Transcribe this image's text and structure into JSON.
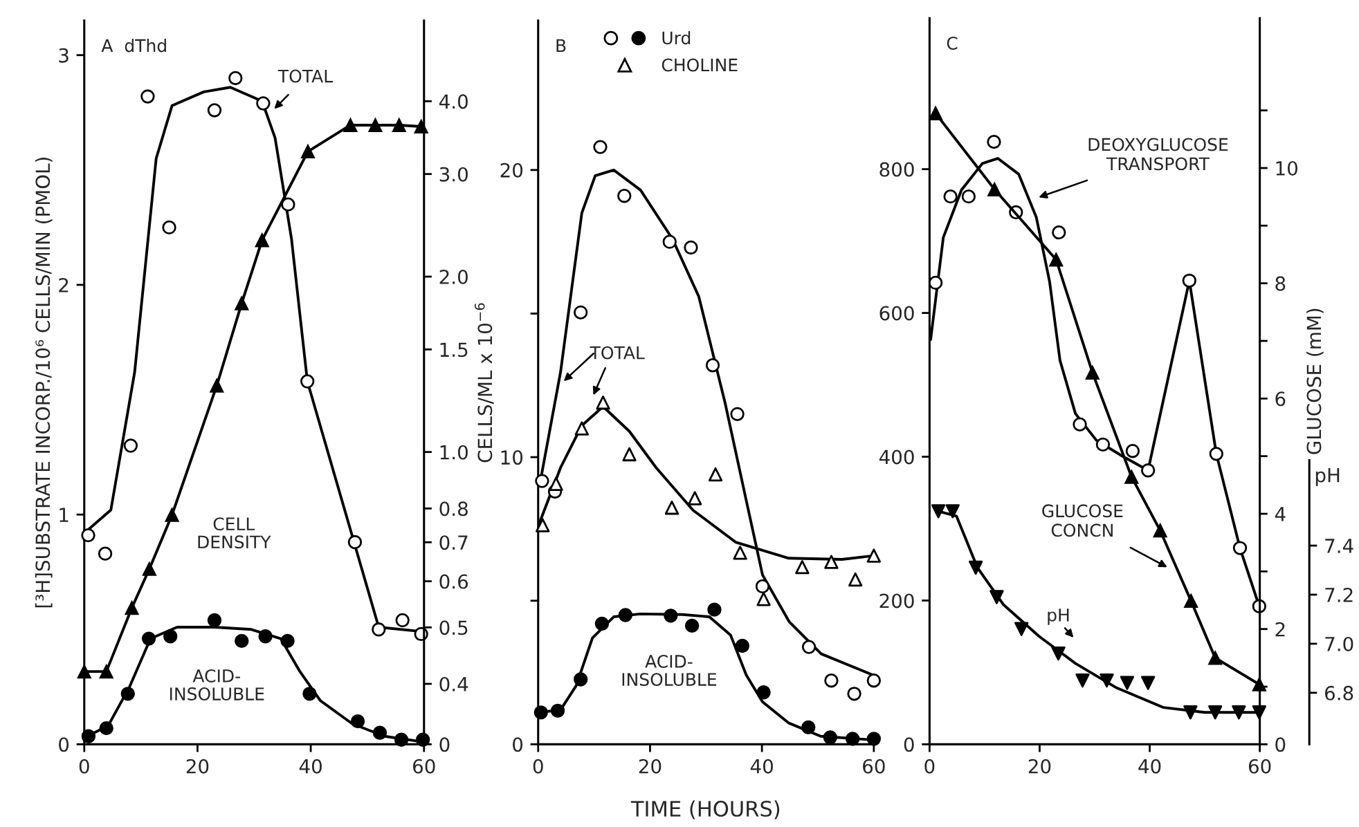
{
  "chart_data": [
    {
      "type": "line",
      "title": "A  dThd",
      "ylabel": "[³H]SUBSTRATE INCORP./10⁶ CELLS/MIN (PMOL)",
      "y2label": "CELLS/ML x 10$^{−6}$",
      "xlim": [
        0,
        60
      ],
      "xticks": [
        0,
        20,
        40,
        60
      ],
      "ylim": [
        0,
        3.15
      ],
      "yticks": [
        0,
        1,
        2,
        3
      ],
      "log": "y2",
      "y2lim": [
        0.315,
        5.5
      ],
      "y2ticks": [
        {
          "value": 0.315,
          "label": "0"
        },
        0.4,
        0.5,
        0.6,
        0.7,
        0.8,
        {
          "value": 1,
          "label": "1.0"
        },
        1.5,
        {
          "value": 2,
          "label": "2.0"
        },
        {
          "value": 3,
          "label": "3.0"
        },
        {
          "value": 4,
          "label": "4.0"
        }
      ],
      "series": [
        {
          "type": "scatter",
          "marker": "circle",
          "color": "#ffffff",
          "x": [
            0.7,
            3.7,
            8.2,
            11.2,
            15,
            23,
            26.7,
            31.6,
            36,
            39.4,
            47.8,
            52,
            56.2,
            59.5
          ],
          "values": [
            0.91,
            0.83,
            1.3,
            2.82,
            2.25,
            2.76,
            2.9,
            2.79,
            2.35,
            1.58,
            0.88,
            0.5,
            0.54,
            0.48
          ]
        },
        {
          "color": "#000000",
          "x": [
            0.5,
            4.7,
            8.9,
            12.7,
            15.5,
            21.1,
            25.8,
            31.4,
            33.7,
            36.6,
            39.4,
            52,
            60
          ],
          "values": [
            0.93,
            1.02,
            1.62,
            2.55,
            2.78,
            2.84,
            2.86,
            2.8,
            2.64,
            2.2,
            1.58,
            0.51,
            0.49
          ]
        },
        {
          "axis": "y2",
          "marker": "triangle",
          "color": "#000000",
          "x": [
            0,
            3.9,
            8.4,
            11.5,
            15.5,
            23.4,
            27.8,
            31.4,
            39.5,
            47,
            51.4,
            55.6,
            59.5
          ],
          "values": [
            0.42,
            0.42,
            0.54,
            0.63,
            0.78,
            1.3,
            1.8,
            2.31,
            3.28,
            3.64,
            3.64,
            3.64,
            3.62
          ]
        },
        {
          "type": "scatter",
          "marker": "circle",
          "color": "#000000",
          "x": [
            0.75,
            3.9,
            7.7,
            11.4,
            15.2,
            23,
            27.8,
            32,
            35.9,
            39.8,
            48.3,
            52.2,
            56,
            59.8
          ],
          "values": [
            0.035,
            0.07,
            0.22,
            0.46,
            0.47,
            0.54,
            0.45,
            0.47,
            0.45,
            0.22,
            0.1,
            0.05,
            0.02,
            0.02
          ]
        },
        {
          "color": "#000000",
          "x": [
            0.5,
            4.2,
            8,
            11.7,
            16.4,
            23,
            29.5,
            34.7,
            38,
            41.7,
            47.3,
            53,
            60
          ],
          "values": [
            0.035,
            0.08,
            0.25,
            0.46,
            0.51,
            0.51,
            0.5,
            0.46,
            0.32,
            0.19,
            0.09,
            0.035,
            0.01
          ]
        }
      ],
      "annotations": [
        {
          "text": "TOTAL",
          "x": 33.3,
          "y": 2.76
        },
        "CELL\nDENSITY",
        "ACID-\nINSOLUBLE"
      ]
    },
    {
      "type": "line",
      "title": "B",
      "xlabel": "TIME (HOURS)",
      "legend": "top left",
      "xlim": [
        0,
        60
      ],
      "xticks": [
        0,
        20,
        40,
        60
      ],
      "ylim": [
        0,
        25.2
      ],
      "yticks": [
        0,
        {
          "value": 5,
          "label": null
        },
        10,
        {
          "value": 15,
          "label": null
        },
        20
      ],
      "series": [
        {
          "type": "scatter",
          "marker": "circle",
          "color": "#ffffff",
          "x": [
            0.7,
            3,
            7.6,
            11.1,
            15.4,
            23.5,
            27.3,
            31.2,
            35.6,
            40.1,
            48.4,
            52.4,
            56.5,
            60
          ],
          "values": [
            9.17,
            8.8,
            15.04,
            20.8,
            19.1,
            17.5,
            17.3,
            13.2,
            11.5,
            5.5,
            3.39,
            2.22,
            1.76,
            2.22
          ]
        },
        {
          "type": "scatter",
          "name": "Urd",
          "marker": "circle",
          "color": "#000000",
          "x": [
            0.5,
            3.5,
            7.6,
            11.4,
            15.6,
            23.7,
            27.5,
            31.5,
            36.5,
            40.3,
            48.3,
            52.2,
            56.2,
            60
          ],
          "values": [
            1.11,
            1.17,
            2.26,
            4.2,
            4.5,
            4.48,
            4.13,
            4.69,
            3.43,
            1.81,
            0.59,
            0.24,
            0.19,
            0.19
          ]
        },
        {
          "type": "scatter",
          "name": "CHOLINE",
          "marker": "triangle",
          "color": "#ffffff",
          "x": [
            0.8,
            3.2,
            7.8,
            11.6,
            16.3,
            23.9,
            28,
            31.7,
            36.1,
            40.3,
            47.2,
            52.4,
            56.7,
            60
          ],
          "values": [
            7.63,
            9.07,
            11.0,
            11.9,
            10.1,
            8.24,
            8.57,
            9.4,
            6.67,
            5.06,
            6.17,
            6.35,
            5.74,
            6.57
          ]
        },
        {
          "color": "#000000",
          "x": [
            0.4,
            4,
            7.8,
            10.2,
            13.5,
            18.3,
            24,
            28.7,
            33.4,
            37.3,
            40.1,
            44.9,
            50.6,
            60
          ],
          "values": [
            9.17,
            12.96,
            18.5,
            19.8,
            20.0,
            19.3,
            17.6,
            15.6,
            11.9,
            8.4,
            5.9,
            4.26,
            3.15,
            2.4
          ]
        },
        {
          "color": "#000000",
          "x": [
            0.2,
            4,
            7.8,
            11.6,
            16.3,
            21.1,
            27.7,
            35.3,
            44.8,
            54.3,
            60
          ],
          "values": [
            7.69,
            9.63,
            11.1,
            11.76,
            10.9,
            9.63,
            8.15,
            7.04,
            6.48,
            6.44,
            6.57
          ]
        },
        {
          "color": "#000000",
          "x": [
            0.2,
            4,
            6.8,
            9.7,
            13.5,
            18.2,
            25.8,
            30.6,
            34.4,
            37.2,
            40.1,
            44.8,
            50.5,
            60
          ],
          "values": [
            1.11,
            1.2,
            2.04,
            3.7,
            4.44,
            4.54,
            4.52,
            4.44,
            3.8,
            2.41,
            1.48,
            0.74,
            0.28,
            0.15
          ]
        }
      ],
      "annotations": [
        "TOTAL",
        "ACID-\nINSOLUBLE"
      ]
    },
    {
      "type": "line",
      "title": "C",
      "y2label": "GLUCOSE (mM)",
      "y3label": "pH",
      "xlim": [
        0,
        60
      ],
      "xticks": [
        0,
        20,
        40,
        60
      ],
      "ylim": [
        0,
        1010
      ],
      "yticks": [
        0,
        200,
        400,
        600,
        800
      ],
      "y2lim": [
        0,
        12.6
      ],
      "y2ticks": [
        0,
        {
          "value": 1,
          "label": null
        },
        2,
        {
          "value": 3,
          "label": null
        },
        4,
        {
          "value": 5,
          "label": null
        },
        6,
        {
          "value": 7,
          "label": null
        },
        8,
        {
          "value": 9,
          "label": null
        },
        10,
        {
          "value": 11,
          "label": null
        }
      ],
      "y3lim": [
        6.59,
        9.55
      ],
      "y3ticks": [
        6.8,
        {
          "value": 7,
          "label": "7.0"
        },
        7.2,
        7.4
      ],
      "series": [
        {
          "type": "scatter",
          "marker": "circle",
          "color": "#ffffff",
          "x": [
            1.1,
            3.8,
            7.1,
            11.7,
            15.7,
            23.5,
            27.3,
            31.5,
            36.9,
            39.7,
            47.2,
            52.1,
            56.4,
            59.9
          ],
          "values": [
            642,
            762,
            762,
            838,
            740,
            712,
            445,
            417,
            408,
            381,
            645,
            404,
            273,
            192
          ]
        },
        {
          "color": "#000000",
          "x": [
            0.2,
            2.5,
            5.8,
            9.6,
            12.4,
            16.2,
            19.4,
            21.8,
            23.7,
            26.5,
            30.3,
            35,
            39.7,
            47.2,
            52.1,
            56.4,
            59.9
          ],
          "values": [
            563,
            705,
            771,
            808,
            815,
            793,
            733,
            644,
            534,
            460,
            423,
            401,
            381,
            645,
            404,
            273,
            192
          ]
        },
        {
          "axis": "y2",
          "marker": "triangle",
          "color": "#000000",
          "x": [
            1.1,
            11.8,
            23,
            29.6,
            36.7,
            41.9,
            47.5,
            51.9,
            59.9
          ],
          "values": [
            10.95,
            9.63,
            8.41,
            6.45,
            4.64,
            3.71,
            2.49,
            1.5,
            1.04
          ]
        },
        {
          "type": "scatter",
          "axis": "y3",
          "marker": "triangle_down",
          "color": "#000000",
          "x": [
            1.6,
            4.2,
            8.4,
            12.2,
            16.7,
            23.4,
            27.8,
            32.2,
            35.9,
            39.7,
            47.4,
            51.9,
            56.2,
            59.9
          ],
          "values": [
            7.54,
            7.54,
            7.31,
            7.19,
            7.06,
            6.96,
            6.85,
            6.85,
            6.84,
            6.84,
            6.72,
            6.72,
            6.72,
            6.72
          ]
        },
        {
          "axis": "y3",
          "color": "#000000",
          "x": [
            1.6,
            4.9,
            8.7,
            13.4,
            19.9,
            26.5,
            34,
            42.5,
            50,
            60
          ],
          "values": [
            7.54,
            7.52,
            7.31,
            7.16,
            7.03,
            6.92,
            6.82,
            6.74,
            6.72,
            6.72
          ]
        }
      ],
      "annotations": [
        {
          "text": "DEOXYGLUCOSE\nTRANSPORT",
          "x": 19.5,
          "y": 760
        },
        {
          "text": "GLUCOSE\nCONCN",
          "x": 43.5,
          "y": 245
        },
        "pH"
      ]
    }
  ]
}
